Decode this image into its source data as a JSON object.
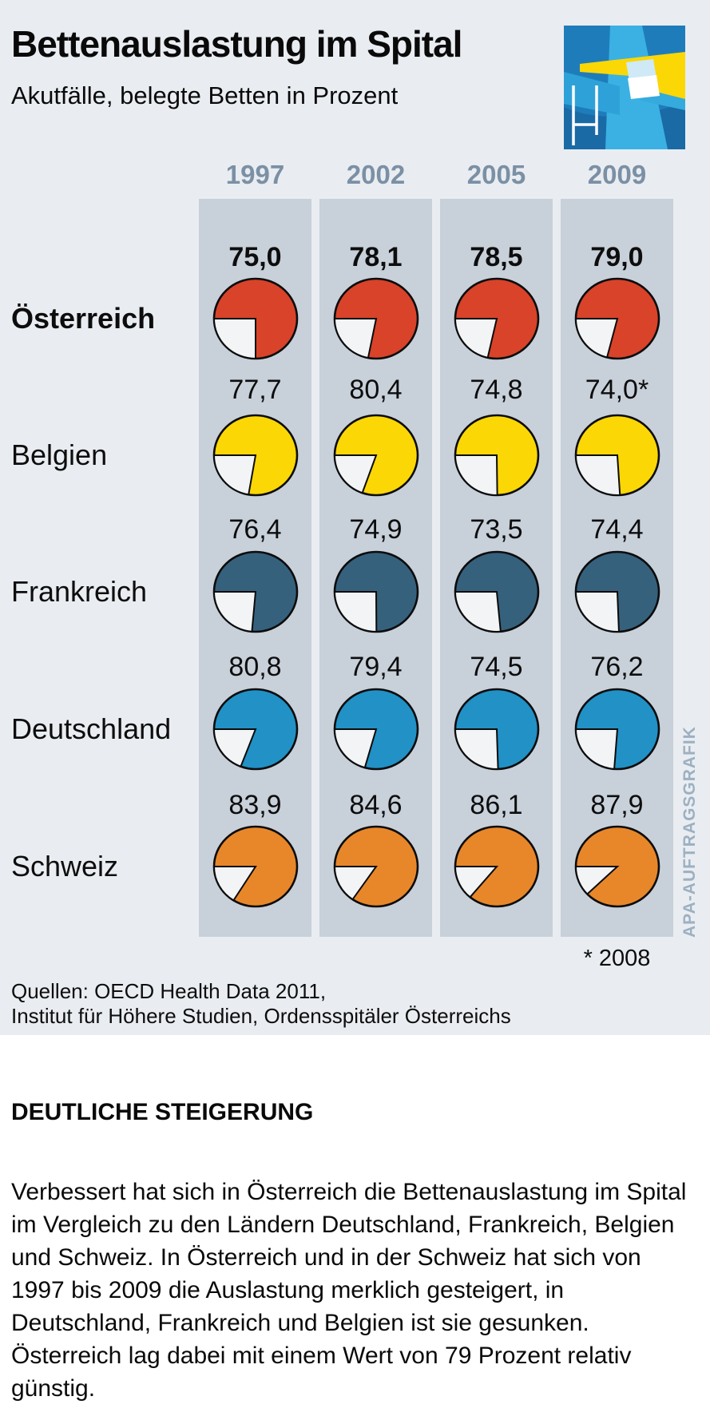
{
  "header": {
    "title": "Bettenauslastung im Spital",
    "subtitle": "Akutfälle, belegte Betten in Prozent",
    "logo_name": "hospital-logo"
  },
  "chart_data": {
    "type": "pie",
    "unit": "Prozent (belegte Betten, Akutfälle)",
    "categories": [
      "1997",
      "2002",
      "2005",
      "2009"
    ],
    "series": [
      {
        "name": "Österreich",
        "color": "#d8432a",
        "values": [
          75.0,
          78.1,
          78.5,
          79.0
        ],
        "labels": [
          "75,0",
          "78,1",
          "78,5",
          "79,0"
        ],
        "emphasis": true
      },
      {
        "name": "Belgien",
        "color": "#fbd706",
        "values": [
          77.7,
          80.4,
          74.8,
          74.0
        ],
        "labels": [
          "77,7",
          "80,4",
          "74,8",
          "74,0*"
        ],
        "emphasis": false
      },
      {
        "name": "Frankreich",
        "color": "#36617d",
        "values": [
          76.4,
          74.9,
          73.5,
          74.4
        ],
        "labels": [
          "76,4",
          "74,9",
          "73,5",
          "74,4"
        ],
        "emphasis": false
      },
      {
        "name": "Deutschland",
        "color": "#2191c6",
        "values": [
          80.8,
          79.4,
          74.5,
          76.2
        ],
        "labels": [
          "80,8",
          "79,4",
          "74,5",
          "76,2"
        ],
        "emphasis": false
      },
      {
        "name": "Schweiz",
        "color": "#e8872a",
        "values": [
          83.9,
          84.6,
          86.1,
          87.9
        ],
        "labels": [
          "83,9",
          "84,6",
          "86,1",
          "87,9"
        ],
        "emphasis": false
      }
    ],
    "empty_color": "#f2f4f6",
    "outline_color": "#0c0c0c",
    "column_color": "#c8d0da",
    "background_color": "#e9edf1",
    "year_label_color": "#7b90a5",
    "footnote": "* 2008",
    "legend_position": "none",
    "grid": false
  },
  "source": {
    "line1": "Quellen: OECD Health Data 2011,",
    "line2": "Institut für Höhere Studien, Ordensspitäler Österreichs"
  },
  "watermark": "APA-AUFTRAGSGRAFIK",
  "article": {
    "headline": "DEUTLICHE STEIGERUNG",
    "body": "Verbessert hat sich in Österreich die Bettenauslastung im Spital im Vergleich zu den Ländern Deutschland, Frankreich, Belgien und Schweiz. In Österreich und in der Schweiz hat sich von 1997 bis 2009 die Auslastung merklich gesteigert, in Deutschland, Frankreich und Belgien ist sie gesunken. Österreich lag dabei mit einem Wert von 79 Prozent relativ günstig."
  }
}
